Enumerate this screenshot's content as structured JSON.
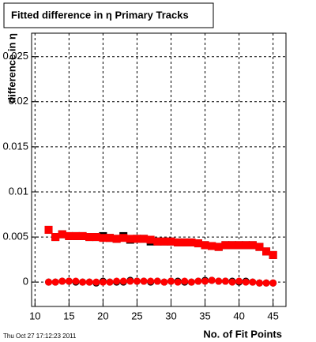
{
  "chart_data": {
    "type": "scatter",
    "title": "Fitted difference in  η Primary Tracks",
    "y_label": "difference in η",
    "x_label": "No. of Fit Points",
    "timestamp": "Thu Oct 27 17:12:23 2011",
    "x": [
      12,
      13,
      14,
      15,
      16,
      17,
      18,
      19,
      20,
      21,
      22,
      23,
      24,
      25,
      26,
      27,
      28,
      29,
      30,
      31,
      32,
      33,
      34,
      35,
      36,
      37,
      38,
      39,
      40,
      41,
      42,
      43,
      44,
      45
    ],
    "series": [
      {
        "color": "#000000",
        "marker": "square",
        "values": [
          0.0058,
          0.005,
          0.0053,
          0.0051,
          0.0051,
          0.0051,
          0.005,
          0.005,
          0.0051,
          0.0049,
          0.0048,
          0.0051,
          0.0047,
          0.0048,
          0.0048,
          0.0045,
          0.0045,
          0.0045,
          0.0045,
          0.0044,
          0.0044,
          0.0044,
          0.0043,
          0.0041,
          0.004,
          0.0039,
          0.0041,
          0.0041,
          0.0041,
          0.0041,
          0.0041,
          0.0039,
          0.0034,
          0.003
        ]
      },
      {
        "color": "#000000",
        "marker": "circle",
        "values": [
          0.0,
          0.0,
          0.0001,
          0.0001,
          0.0,
          0.0,
          0.0,
          -0.0001,
          0.0001,
          0.0,
          0.0,
          0.0,
          0.0002,
          0.0001,
          0.0001,
          0.0,
          0.0001,
          0.0,
          0.0001,
          0.0001,
          0.0,
          0.0,
          0.0001,
          0.0002,
          0.0002,
          0.0001,
          0.0001,
          0.0001,
          0.0,
          0.0001,
          0.0,
          -0.0001,
          -0.0001,
          -0.0001
        ]
      },
      {
        "color": "#ff0000",
        "marker": "square",
        "values": [
          0.0058,
          0.005,
          0.0053,
          0.0051,
          0.0051,
          0.0051,
          0.005,
          0.005,
          0.0049,
          0.0049,
          0.0048,
          0.0049,
          0.0048,
          0.0048,
          0.0048,
          0.0047,
          0.0045,
          0.0045,
          0.0045,
          0.0044,
          0.0044,
          0.0044,
          0.0043,
          0.0041,
          0.004,
          0.0039,
          0.0041,
          0.0041,
          0.0041,
          0.0041,
          0.0041,
          0.0039,
          0.0034,
          0.003
        ]
      },
      {
        "color": "#ff0000",
        "marker": "circle",
        "values": [
          0.0,
          0.0,
          0.0001,
          0.0001,
          0.0001,
          0.0,
          0.0,
          0.0,
          0.0,
          0.0,
          0.0001,
          0.0001,
          0.0001,
          0.0001,
          0.0001,
          0.0001,
          0.0001,
          0.0,
          0.0001,
          0.0,
          0.0001,
          0.0,
          0.0001,
          0.0001,
          0.0002,
          0.0001,
          0.0001,
          0.0,
          0.0001,
          0.0,
          0.0,
          -0.0001,
          -0.0001,
          -0.0001
        ]
      }
    ],
    "xlim": [
      9.5,
      46.9
    ],
    "ylim": [
      -0.0027,
      0.0276
    ],
    "xticks": [
      10,
      15,
      20,
      25,
      30,
      35,
      40,
      45
    ],
    "yticks": [
      0,
      0.005,
      0.01,
      0.015,
      0.02,
      0.025
    ],
    "grid": true
  }
}
